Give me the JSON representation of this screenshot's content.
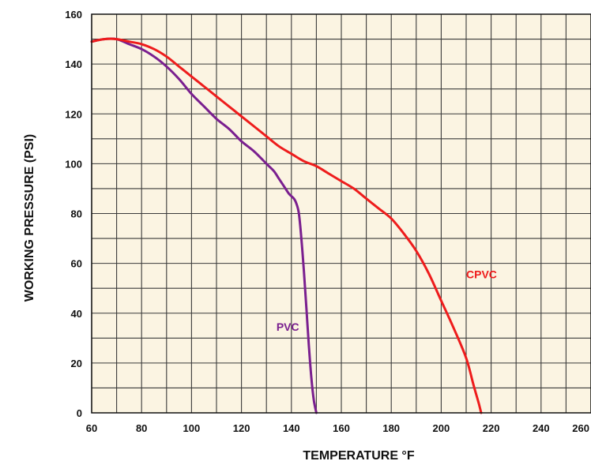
{
  "chart_data": {
    "type": "line",
    "title": "",
    "xlabel": "TEMPERATURE °F",
    "ylabel": "WORKING PRESSURE (PSI)",
    "xlim": [
      60,
      260
    ],
    "ylim": [
      0,
      160
    ],
    "x_ticks": [
      60,
      80,
      100,
      120,
      140,
      160,
      180,
      200,
      220,
      240,
      260
    ],
    "y_ticks": [
      0,
      20,
      40,
      60,
      80,
      100,
      120,
      140,
      160
    ],
    "grid": true,
    "x_minor_step": 10,
    "y_minor_step": 10,
    "background_color": "#fbf4e2",
    "grid_color": "#3a3a3a",
    "series": [
      {
        "name": "PVC",
        "color": "#7a1f8f",
        "points": [
          [
            60,
            149
          ],
          [
            65,
            150
          ],
          [
            70,
            150
          ],
          [
            75,
            148
          ],
          [
            80,
            146
          ],
          [
            85,
            143
          ],
          [
            90,
            139
          ],
          [
            95,
            134
          ],
          [
            100,
            128
          ],
          [
            105,
            123
          ],
          [
            110,
            118
          ],
          [
            115,
            114
          ],
          [
            120,
            109
          ],
          [
            125,
            105
          ],
          [
            130,
            100
          ],
          [
            133,
            97
          ],
          [
            135,
            94
          ],
          [
            137,
            91
          ],
          [
            139,
            88
          ],
          [
            141,
            86
          ],
          [
            142,
            84
          ],
          [
            143,
            80
          ],
          [
            144,
            70
          ],
          [
            145,
            57
          ],
          [
            146,
            42
          ],
          [
            147,
            27
          ],
          [
            148,
            14
          ],
          [
            149,
            5
          ],
          [
            150,
            0
          ]
        ]
      },
      {
        "name": "CPVC",
        "color": "#ee1c1c",
        "points": [
          [
            60,
            149
          ],
          [
            65,
            150
          ],
          [
            70,
            150
          ],
          [
            75,
            149
          ],
          [
            80,
            148
          ],
          [
            85,
            146
          ],
          [
            90,
            143
          ],
          [
            95,
            139
          ],
          [
            100,
            135
          ],
          [
            105,
            131
          ],
          [
            110,
            127
          ],
          [
            115,
            123
          ],
          [
            120,
            119
          ],
          [
            125,
            115
          ],
          [
            130,
            111
          ],
          [
            135,
            107
          ],
          [
            140,
            104
          ],
          [
            145,
            101
          ],
          [
            150,
            99
          ],
          [
            155,
            96
          ],
          [
            160,
            93
          ],
          [
            165,
            90
          ],
          [
            170,
            86
          ],
          [
            175,
            82
          ],
          [
            180,
            78
          ],
          [
            185,
            72
          ],
          [
            190,
            65
          ],
          [
            195,
            56
          ],
          [
            200,
            45
          ],
          [
            205,
            34
          ],
          [
            210,
            22
          ],
          [
            213,
            11
          ],
          [
            215,
            4
          ],
          [
            216,
            0
          ]
        ]
      }
    ],
    "labels": [
      {
        "text": "PVC",
        "series": "PVC",
        "x": 134,
        "y": 33
      },
      {
        "text": "CPVC",
        "series": "CPVC",
        "x": 210,
        "y": 54
      }
    ]
  }
}
